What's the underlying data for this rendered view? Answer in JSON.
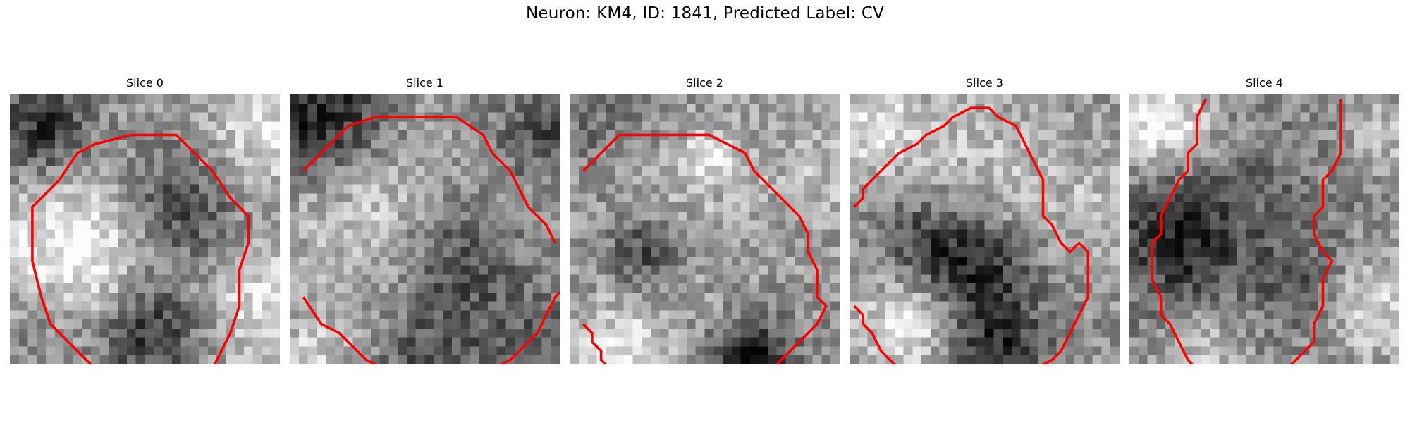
{
  "figure": {
    "title": "Neuron: KM4, ID: 1841, Predicted Label: CV",
    "panels": [
      {
        "title": "Slice 0",
        "contour": [
          [
            9,
            30
          ],
          [
            4,
            25
          ],
          [
            3,
            22
          ],
          [
            2,
            18
          ],
          [
            2,
            12
          ],
          [
            5,
            9
          ],
          [
            7,
            6
          ],
          [
            9,
            5
          ],
          [
            13,
            4
          ],
          [
            18,
            4
          ],
          [
            20,
            6
          ],
          [
            22,
            8
          ],
          [
            24,
            11
          ],
          [
            26,
            13
          ],
          [
            26,
            16
          ],
          [
            25,
            19
          ],
          [
            25,
            23
          ],
          [
            24,
            26
          ],
          [
            23,
            28
          ],
          [
            22,
            30
          ],
          [
            21,
            31
          ]
        ],
        "field": {
          "base": 0.62,
          "blobs": [
            {
              "x": 7,
              "y": 17,
              "r": 6,
              "d": -0.38
            },
            {
              "x": 19,
              "y": 12,
              "r": 5,
              "d": 0.38
            },
            {
              "x": 15,
              "y": 26,
              "r": 4,
              "d": 0.45
            },
            {
              "x": 3,
              "y": 3,
              "r": 4,
              "d": 0.45
            },
            {
              "x": 28,
              "y": 22,
              "r": 5,
              "d": -0.28
            },
            {
              "x": 28,
              "y": 3,
              "r": 4,
              "d": -0.25
            },
            {
              "x": 24,
              "y": 8,
              "r": 4,
              "d": -0.1
            },
            {
              "x": 3,
              "y": 25,
              "r": 4,
              "d": 0.15
            }
          ]
        }
      },
      {
        "title": "Slice 1",
        "contour": [
          [
            1,
            8
          ],
          [
            3,
            6
          ],
          [
            4,
            5
          ],
          [
            5,
            4
          ],
          [
            6,
            3
          ],
          [
            9,
            2
          ],
          [
            18,
            2
          ],
          [
            21,
            4
          ],
          [
            22,
            6
          ],
          [
            24,
            8
          ],
          [
            25,
            10
          ],
          [
            26,
            12
          ],
          [
            28,
            14
          ],
          [
            29,
            16
          ]
        ],
        "contour2": [
          [
            1,
            22
          ],
          [
            3,
            25
          ],
          [
            5,
            26
          ],
          [
            7,
            28
          ],
          [
            8,
            29
          ],
          [
            10,
            30
          ]
        ],
        "contour3": [
          [
            22,
            30
          ],
          [
            24,
            29
          ],
          [
            26,
            27
          ],
          [
            27,
            26
          ],
          [
            28,
            24
          ],
          [
            29,
            22
          ],
          [
            30,
            21
          ]
        ],
        "field": {
          "base": 0.6,
          "blobs": [
            {
              "x": 8,
              "y": 12,
              "r": 6,
              "d": -0.22
            },
            {
              "x": 18,
              "y": 18,
              "r": 5,
              "d": 0.28
            },
            {
              "x": 3,
              "y": 2,
              "r": 5,
              "d": 0.5
            },
            {
              "x": 28,
              "y": 3,
              "r": 4,
              "d": 0.3
            },
            {
              "x": 15,
              "y": 29,
              "r": 4,
              "d": 0.25
            },
            {
              "x": 2,
              "y": 28,
              "r": 3,
              "d": -0.2
            },
            {
              "x": 26,
              "y": 27,
              "r": 5,
              "d": 0.2
            }
          ]
        }
      },
      {
        "title": "Slice 2",
        "contour": [
          [
            1,
            8
          ],
          [
            3,
            6
          ],
          [
            4,
            5
          ],
          [
            5,
            4
          ],
          [
            6,
            4
          ],
          [
            15,
            4
          ],
          [
            17,
            5
          ],
          [
            19,
            6
          ],
          [
            20,
            8
          ],
          [
            21,
            9
          ],
          [
            23,
            11
          ],
          [
            25,
            13
          ],
          [
            26,
            15
          ],
          [
            26,
            17
          ],
          [
            27,
            19
          ],
          [
            27,
            22
          ],
          [
            28,
            23
          ],
          [
            27,
            25
          ],
          [
            26,
            26
          ],
          [
            25,
            27
          ],
          [
            24,
            28
          ],
          [
            23,
            29
          ],
          [
            22,
            30
          ]
        ],
        "contour2": [
          [
            1,
            25
          ],
          [
            2,
            26
          ],
          [
            2,
            27
          ],
          [
            3,
            28
          ],
          [
            3,
            29
          ],
          [
            4,
            30
          ]
        ],
        "field": {
          "base": 0.58,
          "blobs": [
            {
              "x": 8,
              "y": 17,
              "r": 3,
              "d": 0.35
            },
            {
              "x": 13,
              "y": 12,
              "r": 7,
              "d": -0.12
            },
            {
              "x": 20,
              "y": 29,
              "r": 3,
              "d": 0.55
            },
            {
              "x": 5,
              "y": 28,
              "r": 4,
              "d": -0.3
            },
            {
              "x": 28,
              "y": 8,
              "r": 4,
              "d": -0.15
            },
            {
              "x": 3,
              "y": 3,
              "r": 4,
              "d": 0.15
            },
            {
              "x": 15,
              "y": 6,
              "r": 2,
              "d": -0.25
            }
          ]
        }
      },
      {
        "title": "Slice 3",
        "contour": [
          [
            0,
            12
          ],
          [
            1,
            11
          ],
          [
            1,
            10
          ],
          [
            3,
            8
          ],
          [
            5,
            6
          ],
          [
            7,
            5
          ],
          [
            8,
            4
          ],
          [
            10,
            3
          ],
          [
            11,
            2
          ],
          [
            13,
            1
          ],
          [
            15,
            1
          ],
          [
            16,
            2
          ],
          [
            18,
            3
          ],
          [
            19,
            5
          ],
          [
            20,
            7
          ],
          [
            21,
            9
          ],
          [
            21,
            13
          ],
          [
            22,
            14
          ],
          [
            23,
            16
          ],
          [
            24,
            17
          ],
          [
            25,
            16
          ],
          [
            26,
            17
          ],
          [
            26,
            22
          ],
          [
            25,
            24
          ],
          [
            24,
            26
          ],
          [
            23,
            28
          ],
          [
            22,
            29
          ],
          [
            20,
            30
          ],
          [
            19,
            31
          ]
        ],
        "contour2": [
          [
            0,
            23
          ],
          [
            1,
            24
          ],
          [
            1,
            25
          ],
          [
            2,
            26
          ],
          [
            3,
            28
          ],
          [
            4,
            29
          ],
          [
            5,
            30
          ]
        ],
        "field": {
          "base": 0.58,
          "blobs": [
            {
              "x": 15,
              "y": 7,
              "r": 6,
              "d": -0.18
            },
            {
              "x": 8,
              "y": 16,
              "r": 4,
              "d": 0.3
            },
            {
              "x": 14,
              "y": 19,
              "r": 4,
              "d": 0.38
            },
            {
              "x": 6,
              "y": 25,
              "r": 4,
              "d": -0.35
            },
            {
              "x": 16,
              "y": 28,
              "r": 4,
              "d": 0.4
            },
            {
              "x": 2,
              "y": 3,
              "r": 4,
              "d": -0.3
            },
            {
              "x": 27,
              "y": 12,
              "r": 4,
              "d": -0.15
            }
          ]
        }
      },
      {
        "title": "Slice 4",
        "contour": [
          [
            8,
            0
          ],
          [
            7,
            2
          ],
          [
            7,
            5
          ],
          [
            6,
            6
          ],
          [
            6,
            8
          ],
          [
            5,
            9
          ],
          [
            4,
            11
          ],
          [
            3,
            13
          ],
          [
            3,
            15
          ],
          [
            2,
            16
          ],
          [
            2,
            20
          ],
          [
            3,
            22
          ],
          [
            3,
            24
          ],
          [
            4,
            25
          ],
          [
            5,
            27
          ],
          [
            6,
            29
          ],
          [
            7,
            30
          ]
        ],
        "contour2": [
          [
            23,
            0
          ],
          [
            23,
            6
          ],
          [
            22,
            8
          ],
          [
            21,
            9
          ],
          [
            21,
            12
          ],
          [
            20,
            13
          ],
          [
            20,
            15
          ],
          [
            21,
            17
          ],
          [
            22,
            18
          ],
          [
            21,
            20
          ],
          [
            21,
            23
          ],
          [
            20,
            25
          ],
          [
            20,
            27
          ],
          [
            19,
            28
          ],
          [
            18,
            29
          ],
          [
            17,
            30
          ]
        ],
        "field": {
          "base": 0.55,
          "blobs": [
            {
              "x": 5,
              "y": 15,
              "r": 5,
              "d": 0.45
            },
            {
              "x": 3,
              "y": 3,
              "r": 4,
              "d": -0.42
            },
            {
              "x": 18,
              "y": 20,
              "r": 4,
              "d": 0.2
            },
            {
              "x": 27,
              "y": 23,
              "r": 4,
              "d": -0.3
            },
            {
              "x": 16,
              "y": 10,
              "r": 5,
              "d": 0.1
            },
            {
              "x": 8,
              "y": 28,
              "r": 3,
              "d": -0.25
            },
            {
              "x": 28,
              "y": 4,
              "r": 3,
              "d": -0.2
            }
          ]
        }
      }
    ]
  },
  "style": {
    "contour_color": "#ff0000",
    "colormap": "gray"
  }
}
